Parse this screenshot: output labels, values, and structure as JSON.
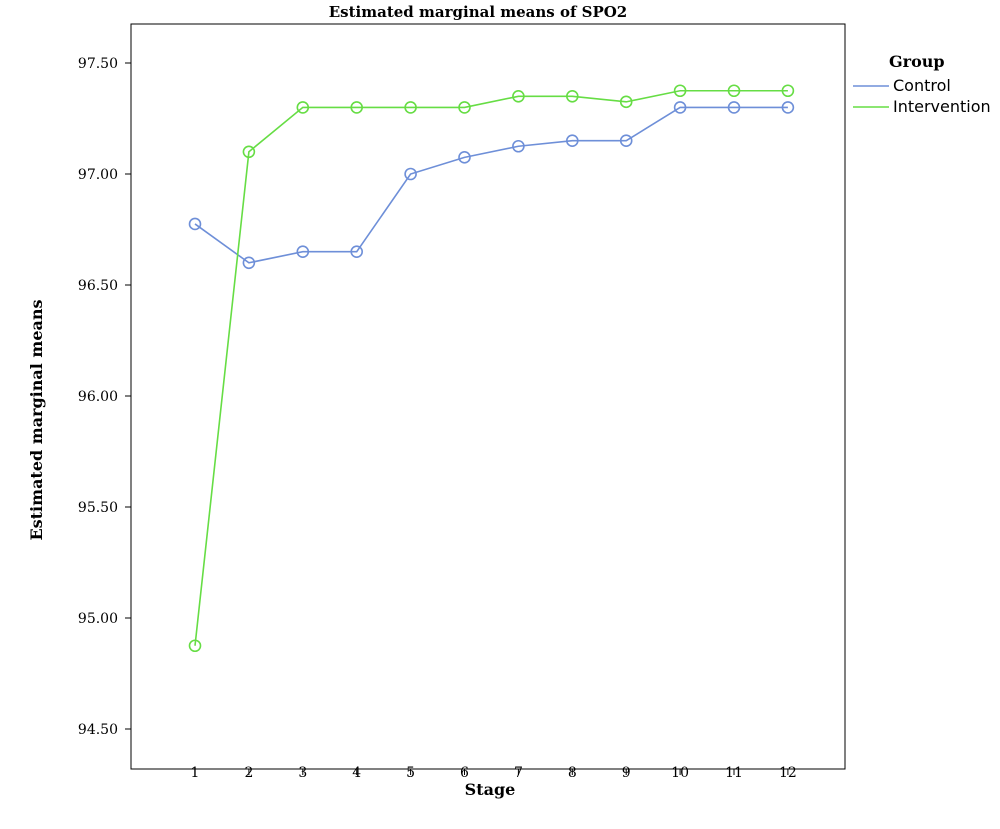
{
  "chart_data": {
    "type": "line",
    "title": "Estimated marginal means of SPO2",
    "xlabel": "Stage",
    "ylabel": "Estimated marginal means",
    "categories": [
      "1",
      "2",
      "3",
      "4",
      "5",
      "6",
      "7",
      "8",
      "9",
      "10",
      "11",
      "12"
    ],
    "ylim": [
      94.3,
      97.8
    ],
    "yticks": [
      "94.50",
      "95.00",
      "95.50",
      "96.00",
      "96.50",
      "97.00",
      "97.50"
    ],
    "grid": false,
    "legend": {
      "title": "Group",
      "placement": "right"
    },
    "series": [
      {
        "name": "Control",
        "color": "#6e8fd8",
        "values": [
          96.775,
          96.6,
          96.65,
          96.65,
          97.0,
          97.075,
          97.125,
          97.15,
          97.15,
          97.3,
          97.3,
          97.3
        ]
      },
      {
        "name": "Intervention",
        "color": "#66dd44",
        "values": [
          94.875,
          97.1,
          97.3,
          97.3,
          97.3,
          97.3,
          97.35,
          97.35,
          97.325,
          97.375,
          97.375,
          97.375
        ]
      }
    ]
  }
}
